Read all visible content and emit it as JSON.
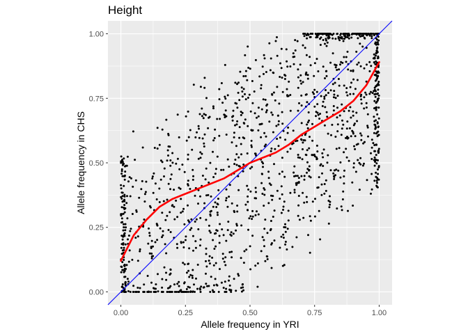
{
  "chart_data": {
    "type": "scatter",
    "title": "Height",
    "xlabel": "Allele frequency in YRI",
    "ylabel": "Allele frequency in CHS",
    "xlim": [
      -0.05,
      1.05
    ],
    "ylim": [
      -0.05,
      1.05
    ],
    "x_ticks": [
      "0.00",
      "0.25",
      "0.50",
      "0.75",
      "1.00"
    ],
    "y_ticks": [
      "0.00",
      "0.25",
      "0.50",
      "0.75",
      "1.00"
    ],
    "grid": true,
    "legend": "none",
    "colors": {
      "panel": "#ebebeb",
      "grid": "#ffffff",
      "points": "#000000",
      "smooth_line": "#ff0000",
      "identity_line": "#0000ff"
    },
    "point_count": 1500,
    "reference_line": {
      "slope": 1,
      "intercept": 0,
      "color": "#0000ff"
    },
    "smooth": {
      "color": "#ff0000",
      "x": [
        0.0,
        0.05,
        0.1,
        0.15,
        0.2,
        0.25,
        0.3,
        0.35,
        0.4,
        0.45,
        0.5,
        0.55,
        0.6,
        0.65,
        0.7,
        0.75,
        0.8,
        0.85,
        0.9,
        0.95,
        1.0
      ],
      "y": [
        0.12,
        0.22,
        0.28,
        0.33,
        0.36,
        0.38,
        0.4,
        0.42,
        0.44,
        0.47,
        0.5,
        0.52,
        0.54,
        0.57,
        0.61,
        0.64,
        0.67,
        0.7,
        0.74,
        0.8,
        0.89
      ]
    }
  }
}
